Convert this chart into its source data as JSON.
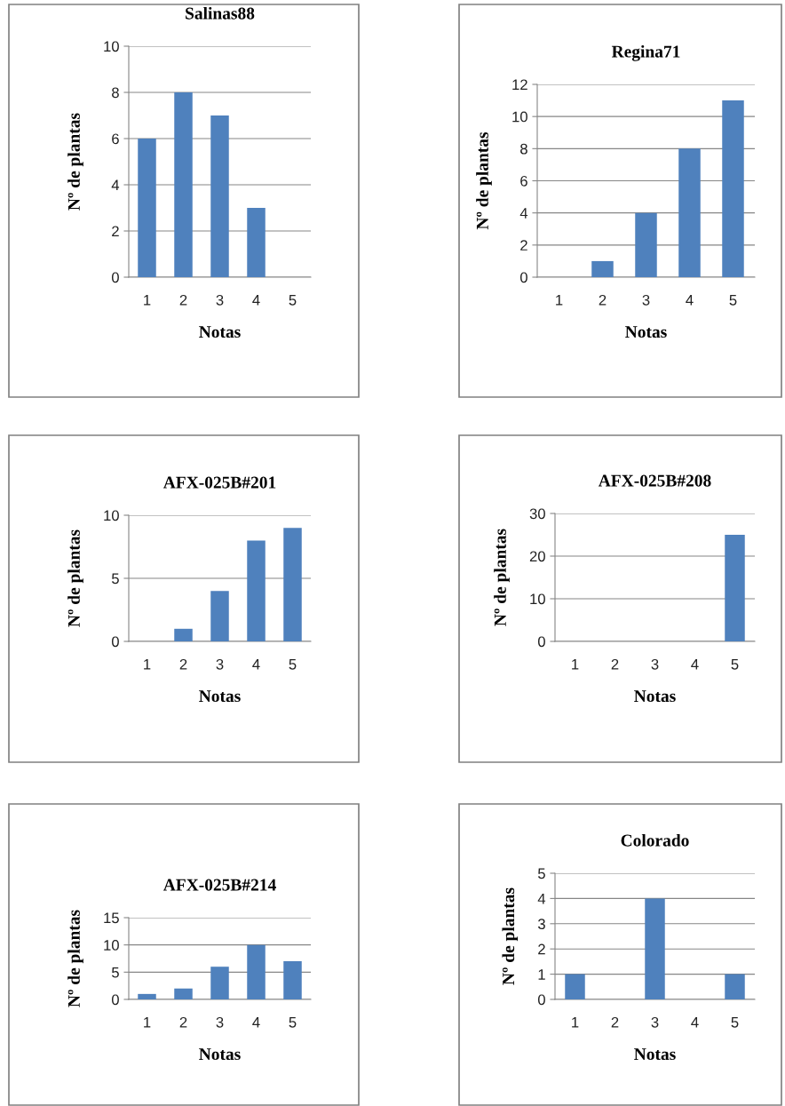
{
  "chart_data": [
    {
      "type": "bar",
      "title": "Salinas88",
      "xlabel": "Notas",
      "ylabel": "Nº de plantas",
      "categories": [
        "1",
        "2",
        "3",
        "4",
        "5"
      ],
      "values": [
        6,
        8,
        7,
        3,
        0
      ],
      "color": "#4f81bd",
      "ylim": [
        0,
        10
      ],
      "yticks": [
        0,
        2,
        4,
        6,
        8,
        10
      ],
      "grid": "y"
    },
    {
      "type": "bar",
      "title": "Regina71",
      "xlabel": "Notas",
      "ylabel": "Nº de plantas",
      "categories": [
        "1",
        "2",
        "3",
        "4",
        "5"
      ],
      "values": [
        0,
        1,
        4,
        8,
        11
      ],
      "color": "#4f81bd",
      "ylim": [
        0,
        12
      ],
      "yticks": [
        0,
        2,
        4,
        6,
        8,
        10,
        12
      ],
      "grid": "y"
    },
    {
      "type": "bar",
      "title": "AFX-025B#201",
      "xlabel": "Notas",
      "ylabel": "Nº de plantas",
      "categories": [
        "1",
        "2",
        "3",
        "4",
        "5"
      ],
      "values": [
        0,
        1,
        4,
        8,
        9
      ],
      "color": "#4f81bd",
      "ylim": [
        0,
        10
      ],
      "yticks": [
        0,
        5,
        10
      ],
      "grid": "y"
    },
    {
      "type": "bar",
      "title": "AFX-025B#208",
      "xlabel": "Notas",
      "ylabel": "Nº de plantas",
      "categories": [
        "1",
        "2",
        "3",
        "4",
        "5"
      ],
      "values": [
        0,
        0,
        0,
        0,
        25
      ],
      "color": "#4f81bd",
      "ylim": [
        0,
        30
      ],
      "yticks": [
        0,
        10,
        20,
        30
      ],
      "grid": "y"
    },
    {
      "type": "bar",
      "title": "AFX-025B#214",
      "xlabel": "Notas",
      "ylabel": "Nº de plantas",
      "categories": [
        "1",
        "2",
        "3",
        "4",
        "5"
      ],
      "values": [
        1,
        2,
        6,
        10,
        7
      ],
      "color": "#4f81bd",
      "ylim": [
        0,
        15
      ],
      "yticks": [
        0,
        5,
        10,
        15
      ],
      "grid": "y"
    },
    {
      "type": "bar",
      "title": "Colorado",
      "xlabel": "Notas",
      "ylabel": "Nº de plantas",
      "categories": [
        "1",
        "2",
        "3",
        "4",
        "5"
      ],
      "values": [
        1,
        0,
        4,
        0,
        1
      ],
      "color": "#4f81bd",
      "ylim": [
        0,
        5
      ],
      "yticks": [
        0,
        1,
        2,
        3,
        4,
        5
      ],
      "grid": "y"
    }
  ]
}
